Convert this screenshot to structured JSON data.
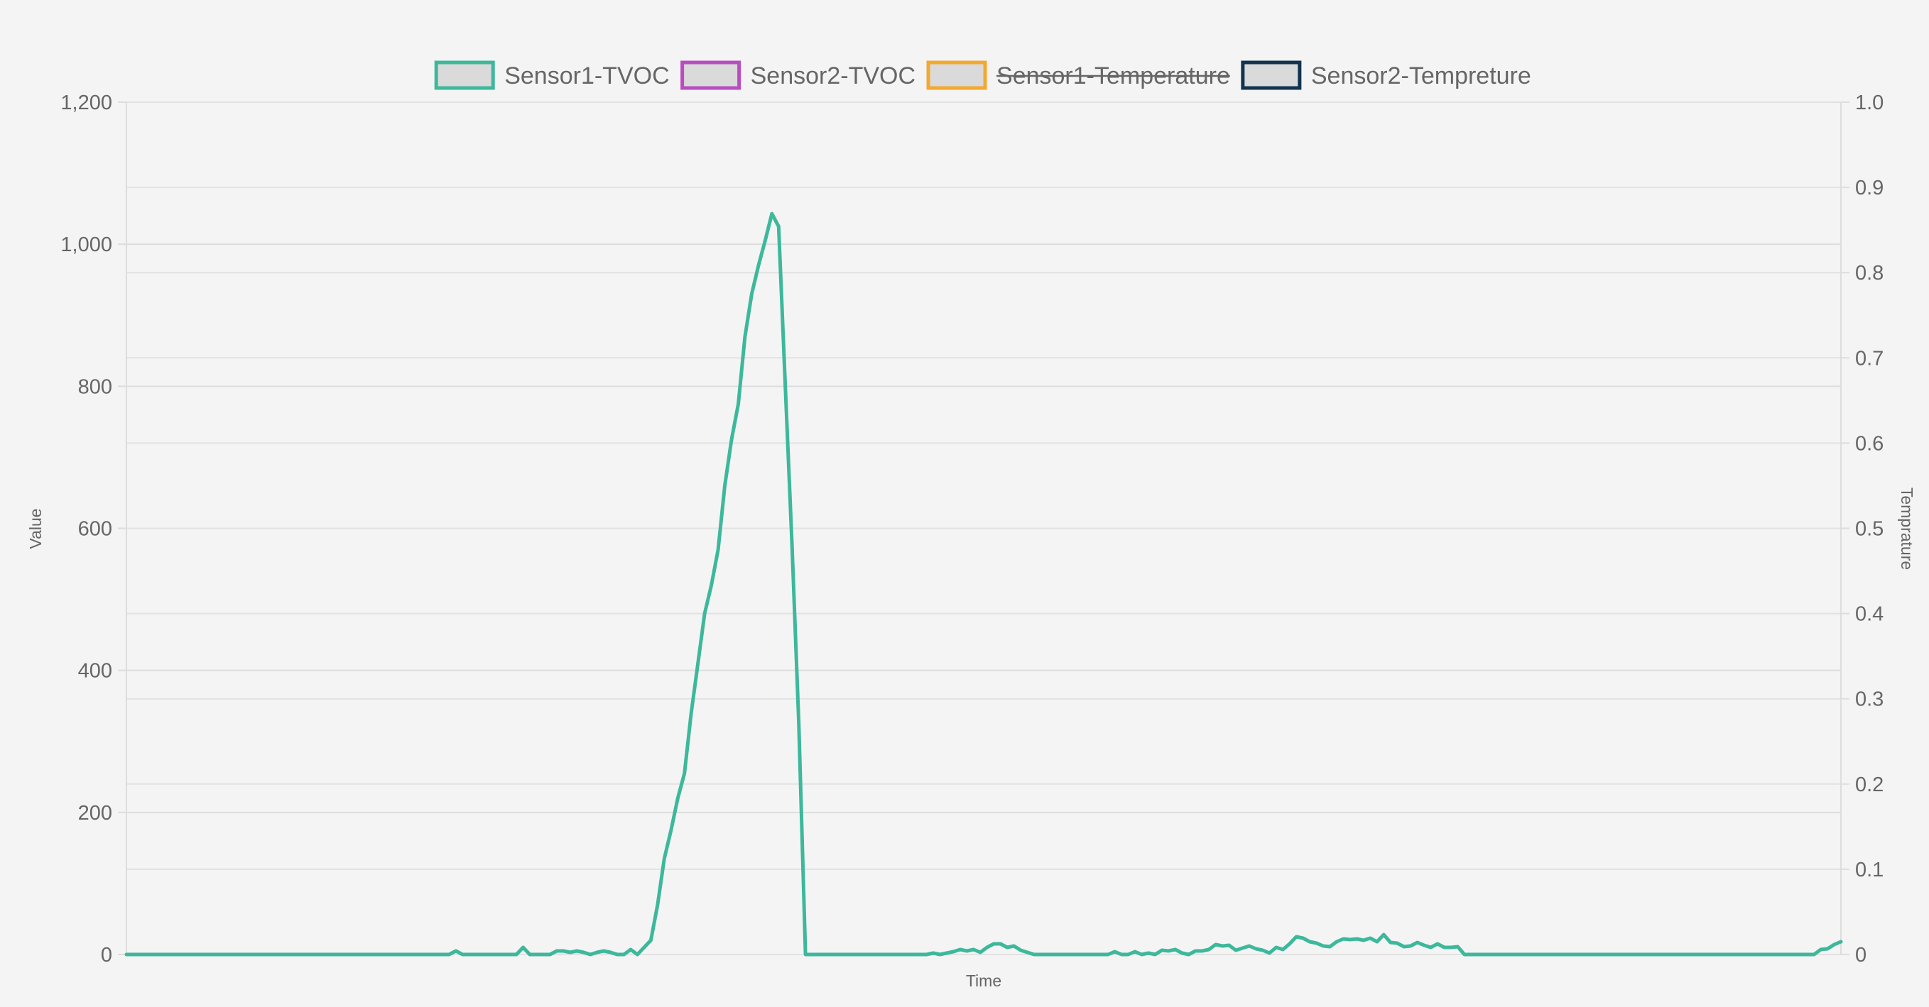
{
  "chart_data": {
    "type": "line",
    "x_axis_label": "Time",
    "y_axis_left_label": "Value",
    "y_axis_right_label": "Temprature",
    "y_left_range": [
      0,
      1200
    ],
    "y_left_ticks": [
      "0",
      "200",
      "400",
      "600",
      "800",
      "1,000",
      "1,200"
    ],
    "y_right_range": [
      0,
      1.0
    ],
    "y_right_ticks": [
      "0",
      "0.1",
      "0.2",
      "0.3",
      "0.4",
      "0.5",
      "0.6",
      "0.7",
      "0.8",
      "0.9",
      "1.0"
    ],
    "grid": true,
    "legend_position": "top-center",
    "legend": [
      {
        "name": "Sensor1-TVOC",
        "color": "#3db89b",
        "hidden": false
      },
      {
        "name": "Sensor2-TVOC",
        "color": "#b84dc0",
        "hidden": false
      },
      {
        "name": "Sensor1-Temperature",
        "color": "#f3a82f",
        "hidden": true
      },
      {
        "name": "Sensor2-Tempreture",
        "color": "#11334f",
        "hidden": false
      }
    ],
    "series": [
      {
        "name": "Sensor1-TVOC",
        "color": "#3db89b",
        "axis": "left",
        "values": [
          0,
          0,
          0,
          0,
          0,
          0,
          0,
          0,
          0,
          0,
          0,
          0,
          0,
          0,
          0,
          0,
          0,
          0,
          0,
          0,
          0,
          0,
          0,
          0,
          0,
          0,
          0,
          0,
          0,
          0,
          0,
          0,
          0,
          0,
          0,
          0,
          0,
          0,
          0,
          0,
          0,
          0,
          0,
          0,
          0,
          0,
          0,
          0,
          0,
          5,
          0,
          0,
          0,
          0,
          0,
          0,
          0,
          0,
          0,
          10,
          0,
          0,
          0,
          0,
          5,
          5,
          3,
          5,
          3,
          0,
          3,
          5,
          3,
          0,
          0,
          7,
          0,
          10,
          20,
          70,
          135,
          175,
          220,
          255,
          340,
          410,
          480,
          520,
          570,
          660,
          725,
          775,
          870,
          930,
          970,
          1005,
          1043,
          1025,
          800,
          575,
          325,
          0,
          0,
          0,
          0,
          0,
          0,
          0,
          0,
          0,
          0,
          0,
          0,
          0,
          0,
          0,
          0,
          0,
          0,
          0,
          2,
          0,
          2,
          4,
          7,
          5,
          7,
          3,
          10,
          15,
          15,
          10,
          12,
          6,
          3,
          0,
          0,
          0,
          0,
          0,
          0,
          0,
          0,
          0,
          0,
          0,
          0,
          4,
          0,
          0,
          4,
          0,
          2,
          0,
          6,
          5,
          7,
          2,
          0,
          5,
          5,
          7,
          14,
          12,
          13,
          6,
          9,
          12,
          8,
          6,
          2,
          10,
          7,
          15,
          25,
          23,
          18,
          16,
          12,
          11,
          18,
          22,
          21,
          22,
          20,
          23,
          18,
          28,
          17,
          16,
          11,
          12,
          17,
          13,
          10,
          15,
          10,
          10,
          11,
          0,
          0,
          0,
          0,
          0,
          0,
          0,
          0,
          0,
          0,
          0,
          0,
          0,
          0,
          0,
          0,
          0,
          0,
          0,
          0,
          0,
          0,
          0,
          0,
          0,
          0,
          0,
          0,
          0,
          0,
          0,
          0,
          0,
          0,
          0,
          0,
          0,
          0,
          0,
          0,
          0,
          0,
          0,
          0,
          0,
          0,
          0,
          0,
          0,
          0,
          0,
          0,
          0,
          7,
          8,
          14,
          18
        ]
      }
    ]
  }
}
